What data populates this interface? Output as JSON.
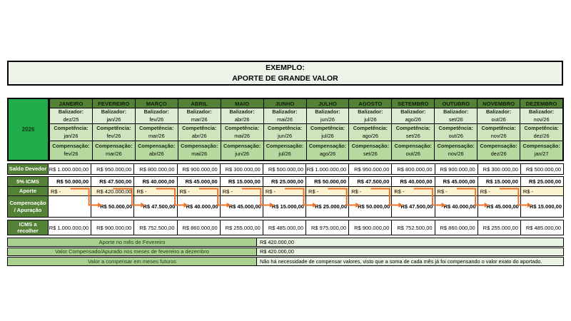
{
  "title": {
    "line1": "EXEMPLO:",
    "line2": "APORTE DE GRANDE VALOR"
  },
  "year_label": "2026",
  "row_headers": {
    "balizador": "Balizador:",
    "competencia": "Competência:",
    "compensacao": "Compensação:",
    "saldo_devedor": "Saldo Devedor",
    "icms_5": "5% ICMS",
    "aporte": "Aporte",
    "compensacao_apuracao": "Compensação / Apuração",
    "icms_recolher": "ICMS a recolher"
  },
  "months": [
    {
      "name": "JANEIRO",
      "balizador": "dez/25",
      "competencia": "jan/26",
      "compensacao": "fev/26",
      "saldo_devedor": "R$ 1.000.000,00",
      "icms_5": "R$ 50.000,00",
      "aporte": "R$ -",
      "compensacao_apuracao": "",
      "icms_recolher": "R$ 1.000.000,00"
    },
    {
      "name": "FEVEREIRO",
      "balizador": "jan/26",
      "competencia": "fev/26",
      "compensacao": "mar/26",
      "saldo_devedor": "R$ 950.000,00",
      "icms_5": "R$ 47.500,00",
      "aporte": "R$ 420.000,00",
      "compensacao_apuracao": "R$ 50.000,00",
      "icms_recolher": "R$ 900.000,00"
    },
    {
      "name": "MARÇO",
      "balizador": "fev/26",
      "competencia": "mar/26",
      "compensacao": "abr/26",
      "saldo_devedor": "R$ 800.000,00",
      "icms_5": "R$ 40.000,00",
      "aporte": "R$ -",
      "compensacao_apuracao": "R$ 47.500,00",
      "icms_recolher": "R$ 752.500,00"
    },
    {
      "name": "ABRIL",
      "balizador": "mar/26",
      "competencia": "abr/26",
      "compensacao": "mai/26",
      "saldo_devedor": "R$ 900.000,00",
      "icms_5": "R$ 45.000,00",
      "aporte": "R$ -",
      "compensacao_apuracao": "R$ 40.000,00",
      "icms_recolher": "R$ 860.000,00"
    },
    {
      "name": "MAIO",
      "balizador": "abr/26",
      "competencia": "mai/26",
      "compensacao": "jun/26",
      "saldo_devedor": "R$ 300.000,00",
      "icms_5": "R$ 15.000,00",
      "aporte": "R$ -",
      "compensacao_apuracao": "R$ 45.000,00",
      "icms_recolher": "R$ 255.000,00"
    },
    {
      "name": "JUNHO",
      "balizador": "mai/26",
      "competencia": "jun/26",
      "compensacao": "jul/26",
      "saldo_devedor": "R$ 500.000,00",
      "icms_5": "R$ 25.000,00",
      "aporte": "R$ -",
      "compensacao_apuracao": "R$ 15.000,00",
      "icms_recolher": "R$ 485.000,00"
    },
    {
      "name": "JULHO",
      "balizador": "jun/26",
      "competencia": "jul/26",
      "compensacao": "ago/26",
      "saldo_devedor": "R$ 1.000.000,00",
      "icms_5": "R$ 50.000,00",
      "aporte": "R$ -",
      "compensacao_apuracao": "R$ 25.000,00",
      "icms_recolher": "R$ 975.000,00"
    },
    {
      "name": "AGOSTO",
      "balizador": "jul/26",
      "competencia": "ago/26",
      "compensacao": "set/26",
      "saldo_devedor": "R$ 950.000,00",
      "icms_5": "R$ 47.500,00",
      "aporte": "R$ -",
      "compensacao_apuracao": "R$ 50.000,00",
      "icms_recolher": "R$ 900.000,00"
    },
    {
      "name": "SETEMBRO",
      "balizador": "ago/26",
      "competencia": "set/26",
      "compensacao": "out/26",
      "saldo_devedor": "R$ 800.000,00",
      "icms_5": "R$ 40.000,00",
      "aporte": "R$ -",
      "compensacao_apuracao": "R$ 47.500,00",
      "icms_recolher": "R$ 752.500,00"
    },
    {
      "name": "OUTUBRO",
      "balizador": "set/26",
      "competencia": "out/26",
      "compensacao": "nov/26",
      "saldo_devedor": "R$ 900.000,00",
      "icms_5": "R$ 45.000,00",
      "aporte": "R$ -",
      "compensacao_apuracao": "R$ 40.000,00",
      "icms_recolher": "R$ 860.000,00"
    },
    {
      "name": "NOVEMBRO",
      "balizador": "out/26",
      "competencia": "nov/26",
      "compensacao": "dez/26",
      "saldo_devedor": "R$ 300.000,00",
      "icms_5": "R$ 15.000,00",
      "aporte": "R$ -",
      "compensacao_apuracao": "R$ 45.000,00",
      "icms_recolher": "R$ 255.000,00"
    },
    {
      "name": "DEZEMBRO",
      "balizador": "nov/26",
      "competencia": "dez/26",
      "compensacao": "jan/27",
      "saldo_devedor": "R$ 500.000,00",
      "icms_5": "R$ 25.000,00",
      "aporte": "R$ -",
      "compensacao_apuracao": "R$ 15.000,00",
      "icms_recolher": "R$ 485.000,00"
    }
  ],
  "summary": [
    {
      "label": "Aporte no mês de Fevereiro",
      "value": "R$ 420.000,00"
    },
    {
      "label": "Valor Compensado/Apurado nos meses de fevereiro a dezembro",
      "value": "R$ 420.000,00"
    },
    {
      "label": "Valor a compensar em meses futuros",
      "value": "Não há necessidade de compensar valores, visto que a soma de cada mês já foi compensando o valor exato do aportado."
    }
  ],
  "colors": {
    "header_green": "#538135",
    "year_green": "#21AD4B",
    "balizador_bg": "#DCEBD1",
    "competencia_bg": "#CFE4BC",
    "compensacao_bg": "#B7D9A0",
    "aporte_bg": "#FDF2D0",
    "arrow_orange": "#E8742C",
    "title_bg": "#EDF3E9",
    "summary_label_bg": "#A9D08E",
    "summary_value_bg": "#E9F3E2"
  }
}
